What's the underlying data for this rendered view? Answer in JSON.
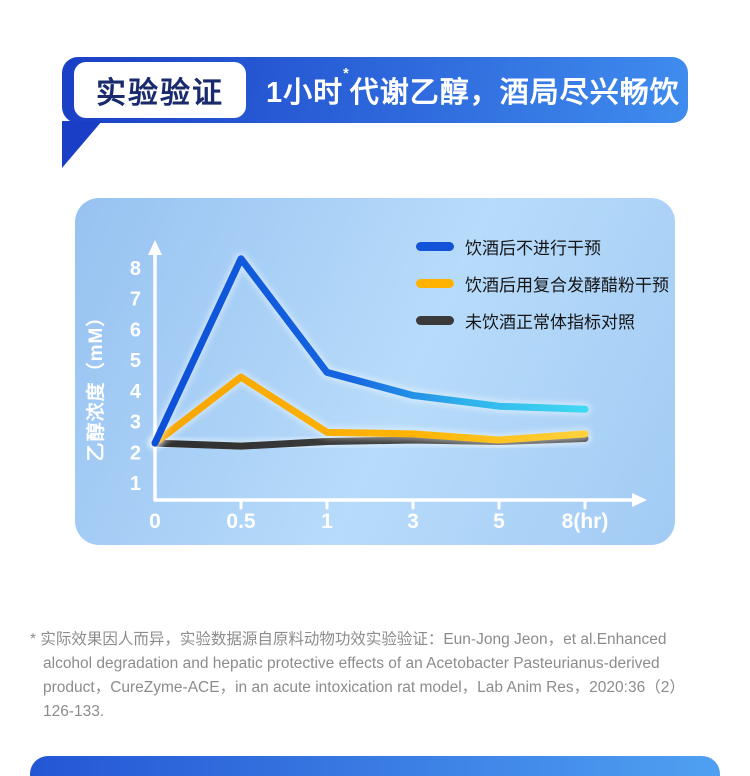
{
  "banner": {
    "badge": "实验验证",
    "title_prefix": "1小时",
    "title_sup": "*",
    "title_rest": "代谢乙醇，酒局尽兴畅饮"
  },
  "chart_data": {
    "type": "line",
    "ylabel": "乙醇浓度（mM）",
    "x_categories": [
      "0",
      "0.5",
      "1",
      "3",
      "5",
      "8(hr)"
    ],
    "y_ticks": [
      1,
      2,
      3,
      4,
      5,
      6,
      7,
      8
    ],
    "ylim": [
      0,
      9
    ],
    "grid": false,
    "legend_position": "top-right",
    "series": [
      {
        "name": "饮酒后不进行干预",
        "color": "#1353d8",
        "gradient": [
          [
            "0%",
            "#0c4fd8"
          ],
          [
            "45%",
            "#1565e0"
          ],
          [
            "72%",
            "#2fb2ec"
          ],
          [
            "100%",
            "#41d9f2"
          ]
        ],
        "values": [
          2.3,
          8.3,
          4.6,
          3.85,
          3.5,
          3.4
        ]
      },
      {
        "name": "饮酒后用复合发酵醋粉干预",
        "color": "#ffb300",
        "gradient": [
          [
            "0%",
            "#f7a600"
          ],
          [
            "60%",
            "#ffb405"
          ],
          [
            "100%",
            "#ffd23c"
          ]
        ],
        "values": [
          2.3,
          4.45,
          2.65,
          2.6,
          2.4,
          2.6
        ]
      },
      {
        "name": "未饮酒正常体指标对照",
        "color": "#3a3a3a",
        "gradient": [
          [
            "0%",
            "#2e2e2e"
          ],
          [
            "100%",
            "#4b4b4b"
          ]
        ],
        "values": [
          2.3,
          2.2,
          2.35,
          2.4,
          2.35,
          2.45
        ]
      }
    ]
  },
  "footnote": {
    "lines": [
      "* 实际效果因人而异，实验数据源自原料动物功效实验验证：Eun-Jong Jeon，et al.Enhanced",
      "alcohol degradation and hepatic protective effects of an Acetobacter Pasteurianus-derived",
      "product，CureZyme-ACE，in an acute intoxication rat model，Lab Anim Res，2020:36（2）",
      "126-133."
    ]
  },
  "theme": {
    "banner_start": "#1a3fc6",
    "banner_end": "#3f8cee",
    "badge_text": "#1a2b6d",
    "panel_a": "#97c2f1",
    "panel_b": "#b7dbfa",
    "panel_c": "#a2cbf4",
    "footnote": "#8c8c8c",
    "bottombar_start": "#2456d4",
    "bottombar_end": "#4fa0f2",
    "axis": "#ffffff",
    "legend_text": "#151515"
  }
}
